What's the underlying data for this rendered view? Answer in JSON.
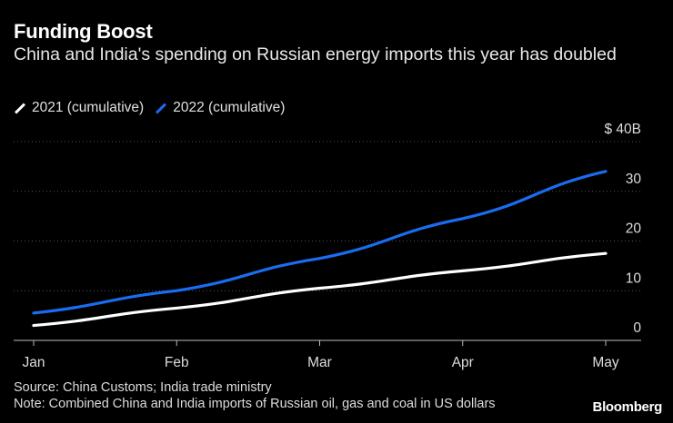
{
  "title": "Funding Boost",
  "subtitle": "China and India's spending on Russian energy imports this year has doubled",
  "source": "Source: China Customs; India trade ministry",
  "note": "Note: Combined China and India imports of Russian oil, gas and coal in US dollars",
  "brand": "Bloomberg",
  "colors": {
    "background": "#000000",
    "series_2021": "#ffffff",
    "series_2022": "#1a6cf0",
    "grid": "#555555"
  },
  "chart_data": {
    "type": "line",
    "x": [
      "Jan",
      "Feb",
      "Mar",
      "Apr",
      "May"
    ],
    "series": [
      {
        "name": "2021 (cumulative)",
        "values": [
          3,
          6.5,
          10.5,
          14,
          17.5
        ]
      },
      {
        "name": "2022 (cumulative)",
        "values": [
          5.5,
          10,
          16.5,
          24.5,
          34
        ]
      }
    ],
    "y_ticks": [
      "$ 40B",
      "30",
      "20",
      "10",
      "0"
    ],
    "ylim": [
      0,
      40
    ],
    "y_axis_position": "right",
    "grid": "horizontal dotted",
    "legend": "top-left"
  }
}
